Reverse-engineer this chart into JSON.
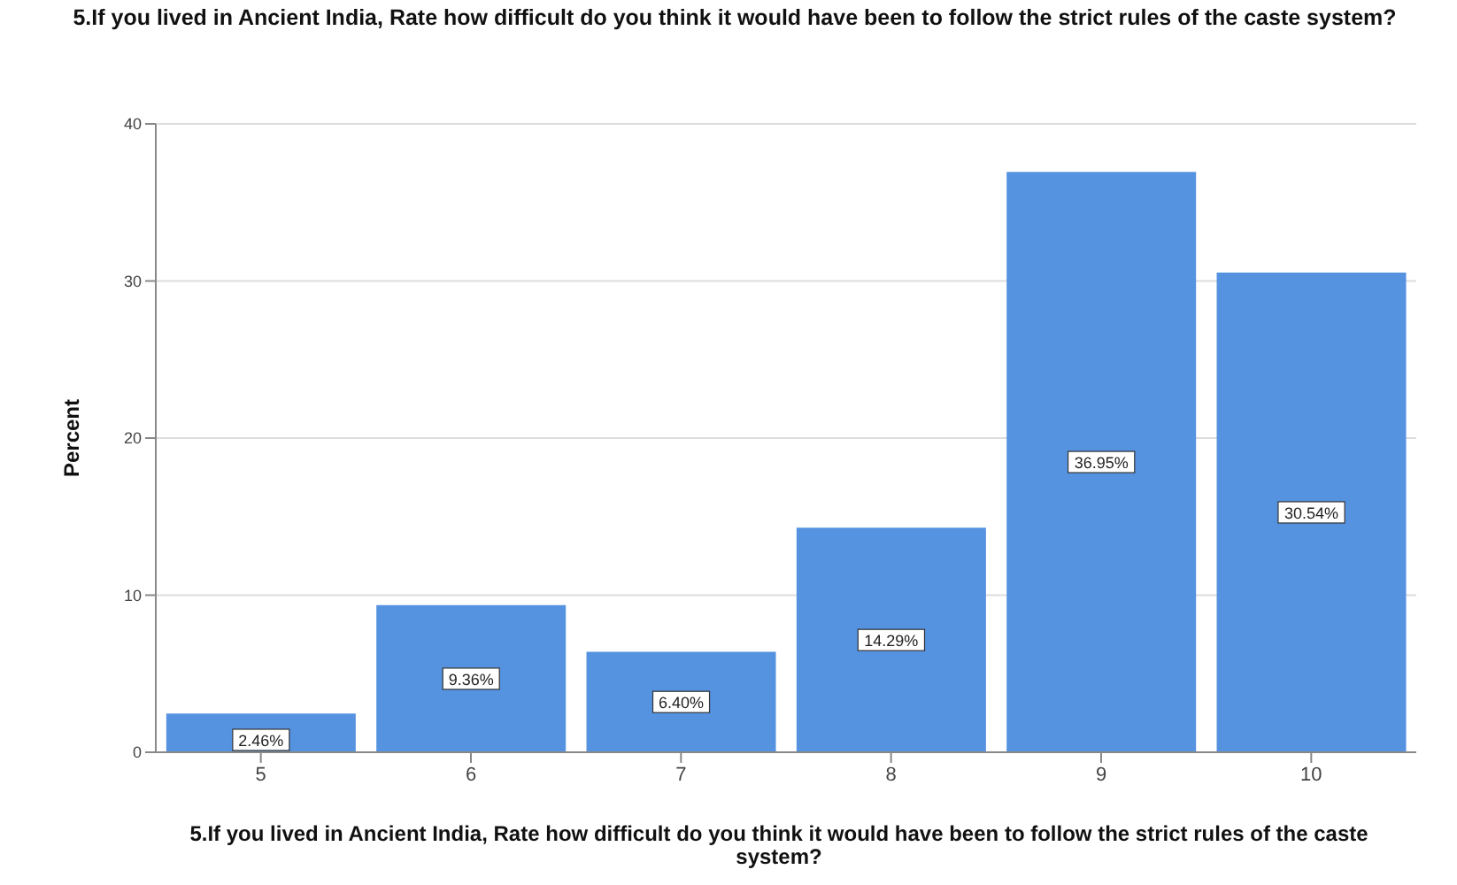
{
  "chart_data": {
    "type": "bar",
    "title": "5.If you lived in Ancient India, Rate how difficult do you think it would have been to follow the strict rules of the caste system?",
    "xlabel": "5.If you lived in Ancient India, Rate how difficult do you think it would have been to follow the strict rules of the caste system?",
    "ylabel": "Percent",
    "categories": [
      "5",
      "6",
      "7",
      "8",
      "9",
      "10"
    ],
    "values": [
      2.46,
      9.36,
      6.4,
      14.29,
      36.95,
      30.54
    ],
    "value_labels": [
      "2.46%",
      "9.36%",
      "6.40%",
      "14.29%",
      "36.95%",
      "30.54%"
    ],
    "color": "#5593e0",
    "ylim": [
      0,
      40
    ],
    "yticks": [
      0,
      10,
      20,
      30,
      40
    ],
    "grid": "y"
  }
}
